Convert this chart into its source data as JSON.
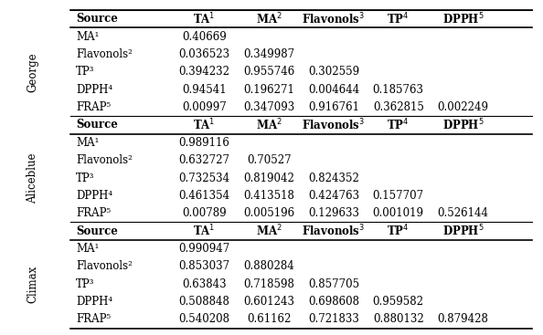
{
  "sections": [
    {
      "label": "George",
      "header": [
        "Source",
        "TA¹",
        "MA²",
        "Flavonols³",
        "TP⁴",
        "DPPH⁵"
      ],
      "rows": [
        [
          "MA¹",
          "0.40669",
          "",
          "",
          "",
          ""
        ],
        [
          "Flavonols²",
          "0.036523",
          "0.349987",
          "",
          "",
          ""
        ],
        [
          "TP³",
          "0.394232",
          "0.955746",
          "0.302559",
          "",
          ""
        ],
        [
          "DPPH⁴",
          "0.94541",
          "0.196271",
          "0.004644",
          "0.185763",
          ""
        ],
        [
          "FRAP⁵",
          "0.00997",
          "0.347093",
          "0.916761",
          "0.362815",
          "0.002249"
        ]
      ]
    },
    {
      "label": "Aliceblue",
      "header": [
        "Source",
        "TA¹",
        "MA²",
        "Flavonols³",
        "TP⁴",
        "DPPH⁵"
      ],
      "rows": [
        [
          "MA¹",
          "0.989116",
          "",
          "",
          "",
          ""
        ],
        [
          "Flavonols²",
          "0.632727",
          "0.70527",
          "",
          "",
          ""
        ],
        [
          "TP³",
          "0.732534",
          "0.819042",
          "0.824352",
          "",
          ""
        ],
        [
          "DPPH⁴",
          "0.461354",
          "0.413518",
          "0.424763",
          "0.157707",
          ""
        ],
        [
          "FRAP⁵",
          "0.00789",
          "0.005196",
          "0.129633",
          "0.001019",
          "0.526144"
        ]
      ]
    },
    {
      "label": "Climax",
      "header": [
        "Source",
        "TA¹",
        "MA²",
        "Flavonols³",
        "TP⁴",
        "DPPH⁵"
      ],
      "rows": [
        [
          "MA¹",
          "0.990947",
          "",
          "",
          "",
          ""
        ],
        [
          "Flavonols²",
          "0.853037",
          "0.880284",
          "",
          "",
          ""
        ],
        [
          "TP³",
          "0.63843",
          "0.718598",
          "0.857705",
          "",
          ""
        ],
        [
          "DPPH⁴",
          "0.508848",
          "0.601243",
          "0.698608",
          "0.959582",
          ""
        ],
        [
          "FRAP⁵",
          "0.540208",
          "0.61162",
          "0.721833",
          "0.880132",
          "0.879428"
        ]
      ]
    }
  ],
  "col_header_superscripts": [
    "",
    "1",
    "2",
    "3",
    "4",
    "5"
  ],
  "col_header_bases": [
    "Source",
    "TA",
    "MA",
    "Flavonols",
    "TP",
    "DPPH"
  ],
  "background_color": "#ffffff",
  "header_bold": true,
  "font_size": 8.5,
  "label_font_size": 8.5
}
